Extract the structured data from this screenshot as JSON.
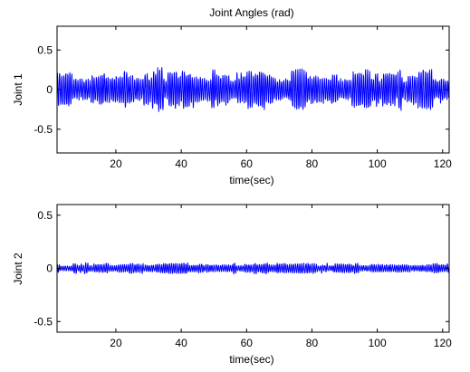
{
  "chart_data": [
    {
      "type": "line",
      "title": "Joint Angles (rad)",
      "xlabel": "time(sec)",
      "ylabel": "Joint 1",
      "xlim": [
        2,
        122
      ],
      "ylim": [
        -0.8,
        0.8
      ],
      "xticks": [
        20,
        40,
        60,
        80,
        100,
        120
      ],
      "yticks": [
        -0.5,
        0,
        0.5
      ],
      "xtick_labels": [
        "20",
        "40",
        "60",
        "80",
        "100",
        "120"
      ],
      "ytick_labels": [
        "-0.5",
        "0",
        "0.5"
      ],
      "grid": false,
      "series": [
        {
          "color": "#0000ff",
          "signal": {
            "kind": "oscillation",
            "x_start": 2,
            "x_end": 122,
            "typical_amplitude": 0.2,
            "peak_amplitude": 0.28,
            "approx_cycles_per_sec": 1.6
          }
        }
      ]
    },
    {
      "type": "line",
      "title": "",
      "xlabel": "time(sec)",
      "ylabel": "Joint 2",
      "xlim": [
        2,
        122
      ],
      "ylim": [
        -0.6,
        0.6
      ],
      "xticks": [
        20,
        40,
        60,
        80,
        100,
        120
      ],
      "yticks": [
        -0.5,
        0,
        0.5
      ],
      "xtick_labels": [
        "20",
        "40",
        "60",
        "80",
        "100",
        "120"
      ],
      "ytick_labels": [
        "-0.5",
        "0",
        "0.5"
      ],
      "grid": false,
      "series": [
        {
          "color": "#0000ff",
          "signal": {
            "kind": "oscillation",
            "x_start": 2,
            "x_end": 122,
            "typical_amplitude": 0.04,
            "peak_amplitude": 0.07,
            "approx_cycles_per_sec": 1.6
          }
        }
      ]
    }
  ]
}
